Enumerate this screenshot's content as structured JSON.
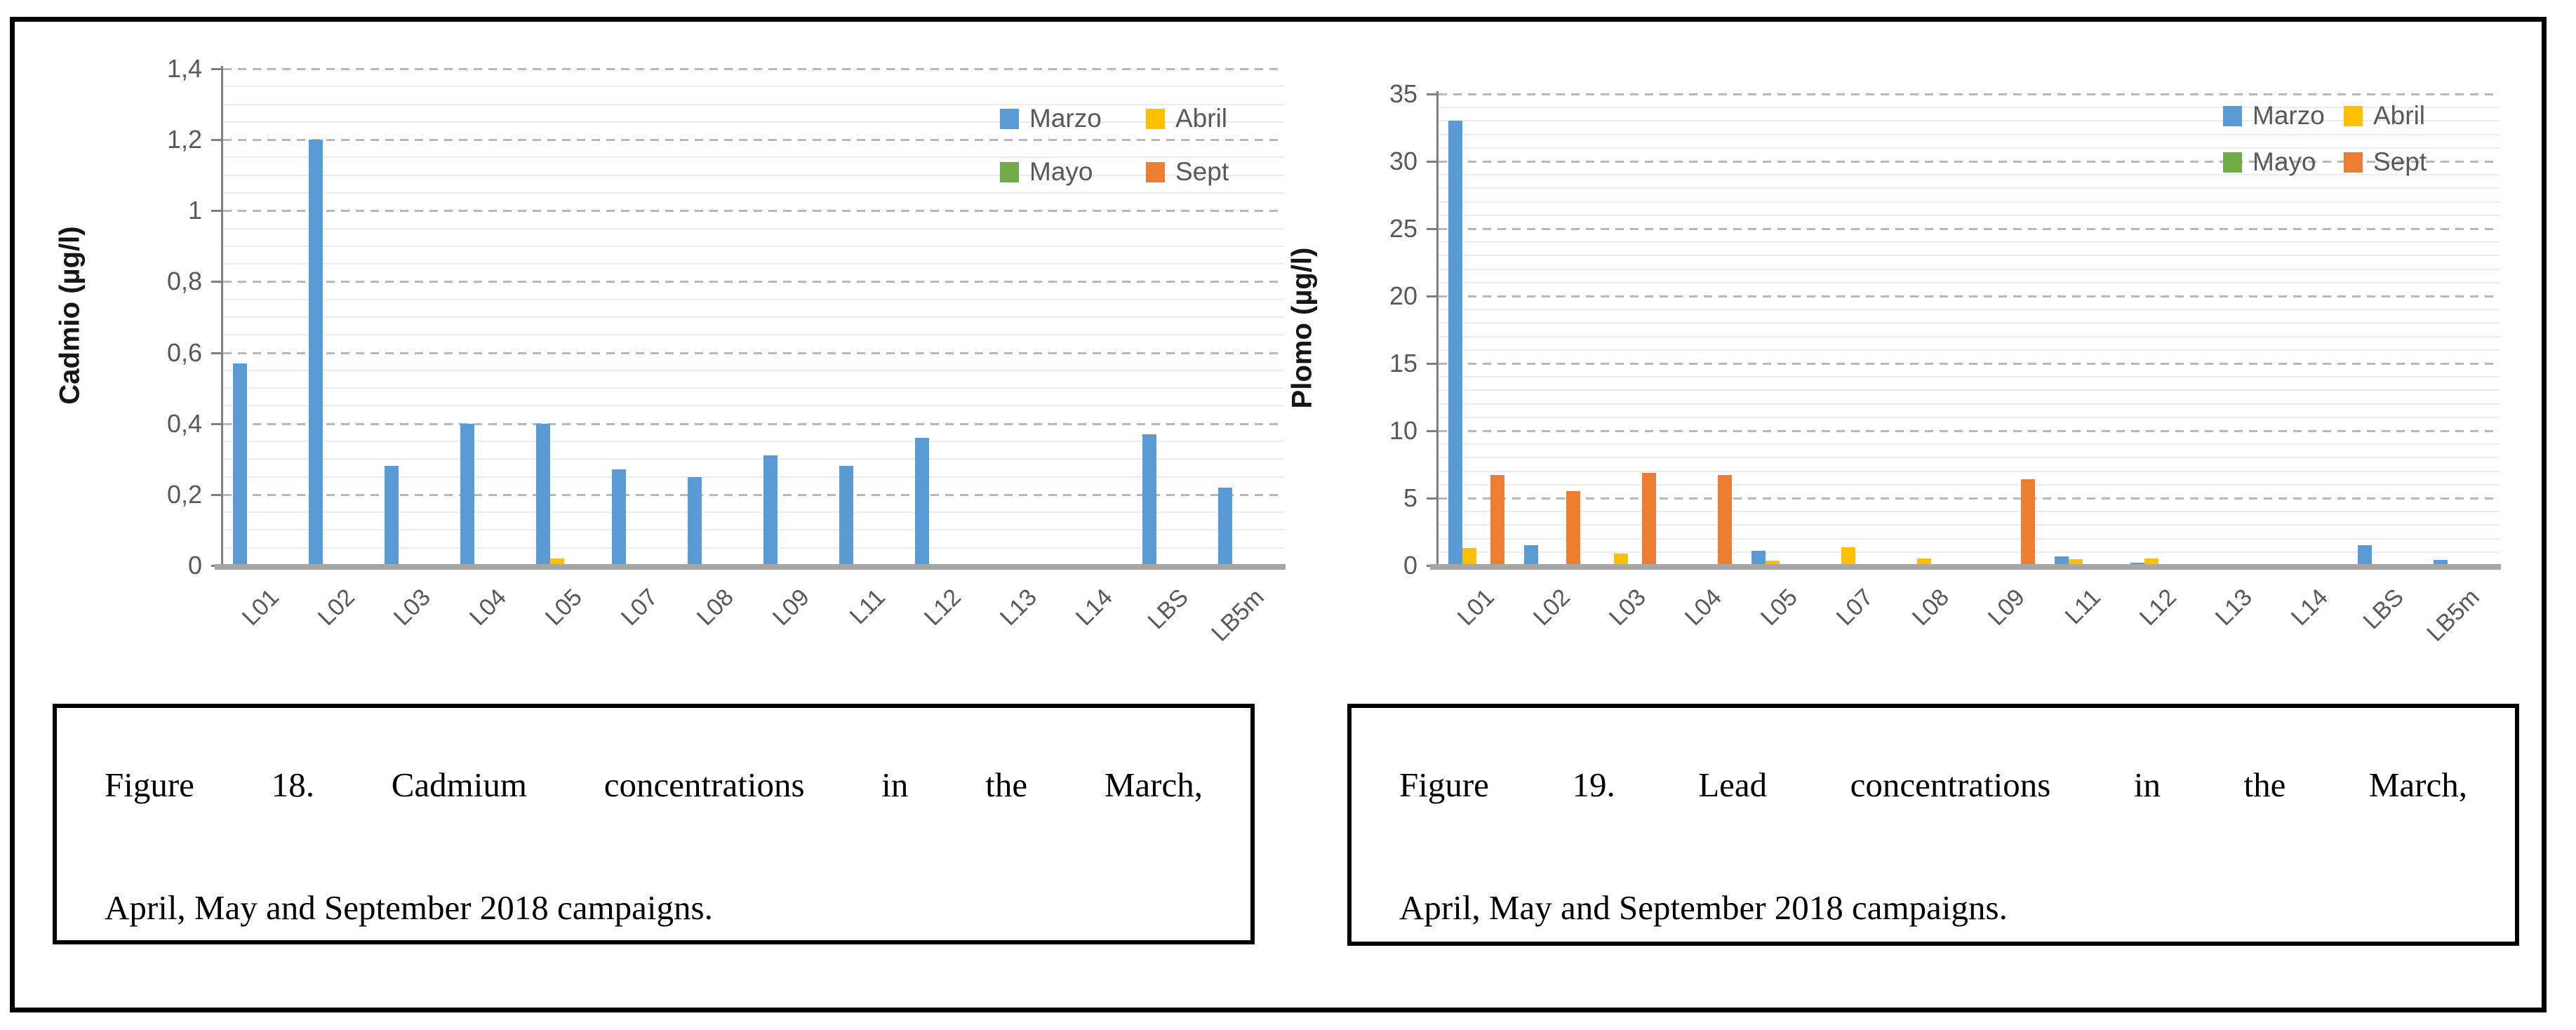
{
  "figure_panel": {
    "description_left_axis": "Cadmio (µg/l)",
    "description_right_axis": "Plomo (µg/l)"
  },
  "chart_data": [
    {
      "type": "bar",
      "title": "",
      "ylabel": "Cadmio (µg/l)",
      "xlabel": "",
      "categories": [
        "L01",
        "L02",
        "L03",
        "L04",
        "L05",
        "L07",
        "L08",
        "L09",
        "L11",
        "L12",
        "L13",
        "L14",
        "LBS",
        "LB5m"
      ],
      "series": [
        {
          "name": "Marzo",
          "color": "#5B9BD5",
          "values": [
            0.57,
            1.2,
            0.28,
            0.4,
            0.4,
            0.27,
            0.25,
            0.31,
            0.28,
            0.36,
            0,
            0,
            0.37,
            0.22
          ]
        },
        {
          "name": "Abril",
          "color": "#FFC000",
          "values": [
            0,
            0,
            0,
            0,
            0.02,
            0,
            0,
            0,
            0,
            0,
            0,
            0,
            0,
            0
          ]
        },
        {
          "name": "Mayo",
          "color": "#70AD47",
          "values": [
            0,
            0,
            0,
            0,
            0,
            0,
            0,
            0,
            0,
            0,
            0,
            0,
            0,
            0
          ]
        },
        {
          "name": "Sept",
          "color": "#ED7D31",
          "values": [
            0,
            0,
            0,
            0,
            0,
            0,
            0,
            0,
            0,
            0,
            0,
            0,
            0,
            0
          ]
        }
      ],
      "ylim": [
        0,
        1.4
      ],
      "ytick_step": 0.2,
      "minor_step": 0.05,
      "ytick_labels": [
        "0",
        "0,2",
        "0,4",
        "0,6",
        "0,8",
        "1",
        "1,2",
        "1,4"
      ],
      "grid": "major-dashed, minor-solid",
      "legend_position": "top-right, 2 columns"
    },
    {
      "type": "bar",
      "title": "",
      "ylabel": "Plomo (µg/l)",
      "xlabel": "",
      "categories": [
        "L01",
        "L02",
        "L03",
        "L04",
        "L05",
        "L07",
        "L08",
        "L09",
        "L11",
        "L12",
        "L13",
        "L14",
        "LBS",
        "LB5m"
      ],
      "series": [
        {
          "name": "Marzo",
          "color": "#5B9BD5",
          "values": [
            33,
            1.5,
            0,
            0,
            1.1,
            0,
            0,
            0,
            0.7,
            0.2,
            0,
            0,
            1.5,
            0.4
          ]
        },
        {
          "name": "Abril",
          "color": "#FFC000",
          "values": [
            1.3,
            0,
            0.9,
            0,
            0.35,
            1.35,
            0.5,
            0,
            0.45,
            0.5,
            0,
            0,
            0,
            0
          ]
        },
        {
          "name": "Mayo",
          "color": "#70AD47",
          "values": [
            0,
            0,
            0,
            0,
            0,
            0,
            0,
            0,
            0,
            0,
            0,
            0,
            0,
            0
          ]
        },
        {
          "name": "Sept",
          "color": "#ED7D31",
          "values": [
            6.7,
            5.5,
            6.9,
            6.7,
            0,
            0,
            0,
            6.4,
            0,
            0,
            0,
            0,
            0,
            0
          ]
        }
      ],
      "ylim": [
        0,
        35
      ],
      "ytick_step": 5,
      "minor_step": 1,
      "ytick_labels": [
        "0",
        "5",
        "10",
        "15",
        "20",
        "25",
        "30",
        "35"
      ],
      "grid": "major-dashed, minor-solid",
      "legend_position": "top-right, 2 columns"
    }
  ],
  "captions": [
    {
      "lines": [
        "Figure 18. Cadmium concentrations in the March,",
        "April, May and September 2018 campaigns."
      ]
    },
    {
      "lines": [
        "Figure 19. Lead concentrations in the March,",
        "April, May and September 2018 campaigns."
      ]
    }
  ]
}
